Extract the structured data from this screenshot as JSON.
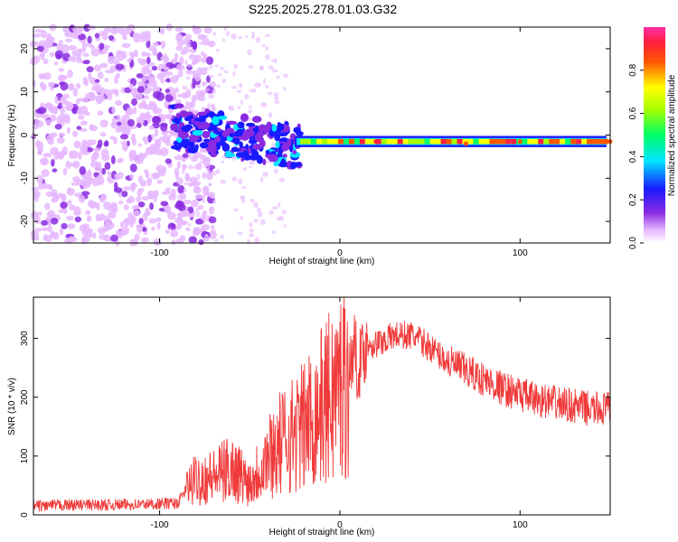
{
  "chart_data": [
    {
      "type": "heatmap",
      "title": "S225.2025.278.01.03.G32",
      "xlabel": "Height of straight line (km)",
      "ylabel": "Frequency (Hz)",
      "xlim": [
        -170,
        150
      ],
      "ylim": [
        -25,
        25
      ],
      "xticks": [
        -100,
        0,
        100
      ],
      "yticks": [
        -20,
        -10,
        0,
        10,
        20
      ],
      "colorbar": {
        "label": "Normalized spectral amplitude",
        "range": [
          0,
          1
        ],
        "ticks": [
          "0.0",
          "0.2",
          "0.4",
          "0.6",
          "0.8"
        ],
        "tick_values": [
          0.0,
          0.2,
          0.4,
          0.6,
          0.8
        ]
      },
      "description_points": [
        {
          "x": -170,
          "freq": 0,
          "amp": 0.1
        },
        {
          "x": -90,
          "freq": 3,
          "amp": 0.35
        },
        {
          "x": -60,
          "freq": 0,
          "amp": 0.3
        },
        {
          "x": -40,
          "freq": -4,
          "amp": 0.3
        },
        {
          "x": -20,
          "freq": -1.5,
          "amp": 0.7
        },
        {
          "x": 20,
          "freq": -1.5,
          "amp": 0.95
        },
        {
          "x": 70,
          "freq": -2,
          "amp": 0.85
        },
        {
          "x": 100,
          "freq": -1.5,
          "amp": 0.9
        },
        {
          "x": 150,
          "freq": -1.5,
          "amp": 0.85
        }
      ]
    },
    {
      "type": "line",
      "xlabel": "Height of straight line (km)",
      "ylabel": "SNR (10 * v/v)",
      "xlim": [
        -170,
        150
      ],
      "ylim": [
        0,
        370
      ],
      "xticks": [
        -100,
        0,
        100
      ],
      "yticks": [
        0,
        100,
        200,
        300
      ],
      "series": [
        {
          "name": "SNR",
          "color": "#f03a3a",
          "x": [
            -170,
            -150,
            -130,
            -110,
            -90,
            -85,
            -80,
            -70,
            -60,
            -50,
            -40,
            -30,
            -20,
            -10,
            0,
            5,
            8,
            10,
            15,
            20,
            30,
            40,
            50,
            60,
            70,
            80,
            90,
            100,
            110,
            120,
            130,
            140,
            150
          ],
          "y": [
            15,
            17,
            17,
            18,
            20,
            45,
            60,
            65,
            80,
            55,
            100,
            130,
            150,
            185,
            220,
            240,
            290,
            250,
            290,
            290,
            305,
            305,
            285,
            260,
            245,
            230,
            215,
            205,
            195,
            190,
            185,
            180,
            180
          ]
        }
      ]
    }
  ],
  "colors": {
    "line": "#f03a3a",
    "frame": "#000000"
  }
}
